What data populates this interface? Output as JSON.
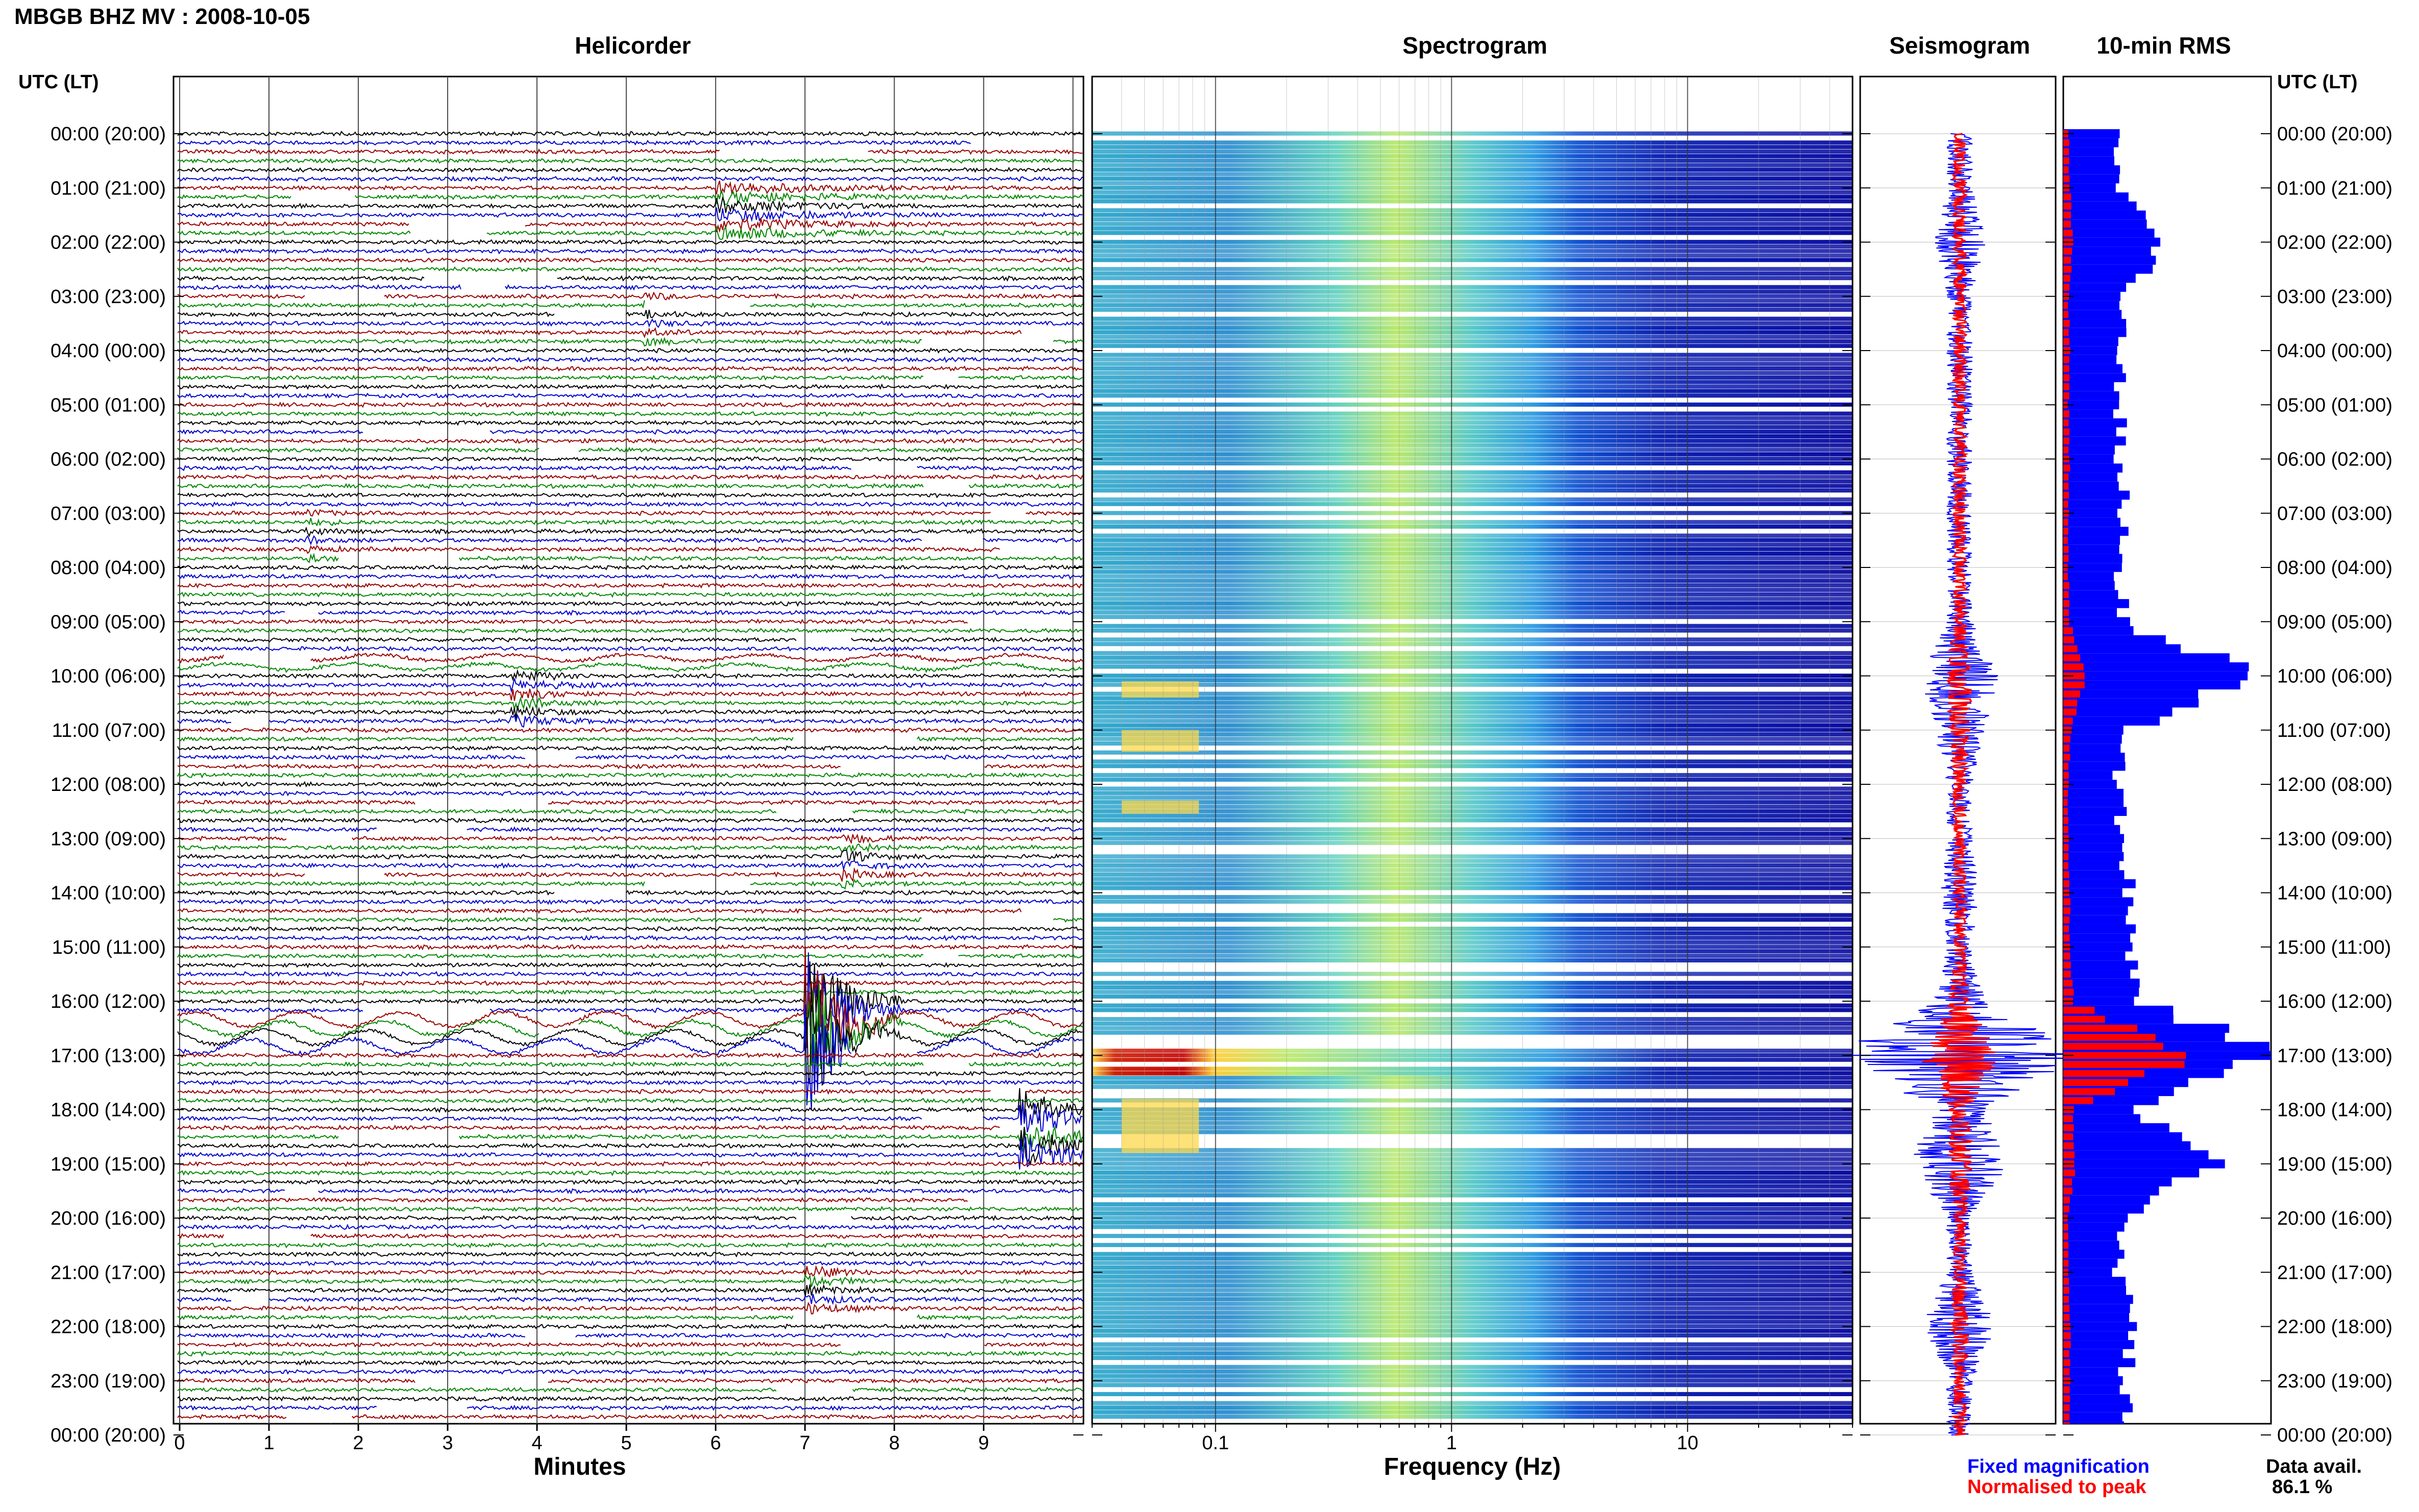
{
  "title": "MBGB BHZ MV : 2008-10-05",
  "panels": {
    "helicorder": "Helicorder",
    "spectrogram": "Spectrogram",
    "seismogram": "Seismogram",
    "rms": "10-min RMS"
  },
  "left_axis_label": "UTC (LT)",
  "right_axis_label": "UTC (LT)",
  "time_labels": [
    "00:00 (20:00)",
    "01:00 (21:00)",
    "02:00 (22:00)",
    "03:00 (23:00)",
    "04:00 (00:00)",
    "05:00 (01:00)",
    "06:00 (02:00)",
    "07:00 (03:00)",
    "08:00 (04:00)",
    "09:00 (05:00)",
    "10:00 (06:00)",
    "11:00 (07:00)",
    "12:00 (08:00)",
    "13:00 (09:00)",
    "14:00 (10:00)",
    "15:00 (11:00)",
    "16:00 (12:00)",
    "17:00 (13:00)",
    "18:00 (14:00)",
    "19:00 (15:00)",
    "20:00 (16:00)",
    "21:00 (17:00)",
    "22:00 (18:00)",
    "23:00 (19:00)",
    "00:00 (20:00)"
  ],
  "legend": {
    "fixed": "Fixed magnification",
    "normalised": "Normalised to peak",
    "fixed_color": "#0000ff",
    "normalised_color": "#ff0000"
  },
  "data_avail": {
    "label": "Data avail.",
    "value": "86.1 %"
  },
  "chart_data": [
    {
      "type": "line",
      "title": "Helicorder",
      "xlabel": "Minutes",
      "x_ticks": [
        "0",
        "1",
        "2",
        "3",
        "4",
        "5",
        "6",
        "7",
        "8",
        "9"
      ],
      "xlim": [
        0,
        10
      ],
      "rows_per_hour": 6,
      "hours": 24,
      "trace_colors": [
        "#000000",
        "#0000cc",
        "#990000",
        "#008800"
      ],
      "events": [
        {
          "hour": 1,
          "minute_start": 6.0,
          "minute_end": 8.0,
          "amplitude": 0.6
        },
        {
          "hour": 3,
          "minute_start": 5.2,
          "minute_end": 5.5,
          "amplitude": 0.3
        },
        {
          "hour": 7,
          "minute_start": 1.4,
          "minute_end": 1.6,
          "amplitude": 0.3
        },
        {
          "hour": 10,
          "minute_start": 3.7,
          "minute_end": 4.4,
          "amplitude": 0.5
        },
        {
          "hour": 13,
          "minute_start": 7.4,
          "minute_end": 7.8,
          "amplitude": 0.5
        },
        {
          "hour": 16,
          "minute_start": 7.0,
          "minute_end": 7.5,
          "amplitude": 6.0
        },
        {
          "hour": 18,
          "minute_start": 9.4,
          "minute_end": 10.0,
          "amplitude": 2.0
        },
        {
          "hour": 21,
          "minute_start": 7.0,
          "minute_end": 7.5,
          "amplitude": 0.5
        }
      ]
    },
    {
      "type": "heatmap",
      "title": "Spectrogram",
      "xlabel": "Frequency (Hz)",
      "x_scale": "log",
      "xlim": [
        0.03,
        50
      ],
      "x_ticks": [
        "0.1",
        "1",
        "10"
      ],
      "x_tick_values": [
        0.1,
        1,
        10
      ]
    },
    {
      "type": "line",
      "title": "Seismogram",
      "series": [
        {
          "color": "#0000ff",
          "values": [
            0.1,
            0.1,
            0.2,
            0.1,
            0.1,
            0.1,
            0.1,
            0.1,
            0.1,
            0.1,
            0.3,
            0.2,
            0.1,
            0.1,
            0.15,
            0.1,
            0.2,
            1.0,
            0.2,
            0.4,
            0.1,
            0.1,
            0.3,
            0.1,
            0.1
          ]
        },
        {
          "color": "#ff0000",
          "values": [
            0.05,
            0.05,
            0.05,
            0.05,
            0.05,
            0.05,
            0.05,
            0.05,
            0.05,
            0.05,
            0.1,
            0.08,
            0.05,
            0.05,
            0.05,
            0.05,
            0.08,
            0.3,
            0.08,
            0.1,
            0.05,
            0.05,
            0.08,
            0.05,
            0.05
          ]
        }
      ]
    },
    {
      "type": "bar",
      "title": "10-min RMS",
      "series": [
        {
          "name": "Fixed magnification",
          "color": "#0000ff"
        },
        {
          "name": "Normalised to peak",
          "color": "#ff0000"
        }
      ],
      "fixed_values": [
        0.25,
        0.27,
        0.48,
        0.27,
        0.29,
        0.27,
        0.27,
        0.28,
        0.27,
        0.28,
        0.92,
        0.32,
        0.26,
        0.27,
        0.32,
        0.3,
        0.38,
        1.0,
        0.32,
        0.76,
        0.27,
        0.27,
        0.35,
        0.28,
        0.3
      ],
      "normalised_values": [
        0.04,
        0.05,
        0.08,
        0.04,
        0.05,
        0.04,
        0.05,
        0.04,
        0.04,
        0.05,
        0.18,
        0.06,
        0.04,
        0.04,
        0.05,
        0.05,
        0.08,
        1.0,
        0.08,
        0.1,
        0.04,
        0.04,
        0.06,
        0.05,
        0.05
      ]
    }
  ]
}
